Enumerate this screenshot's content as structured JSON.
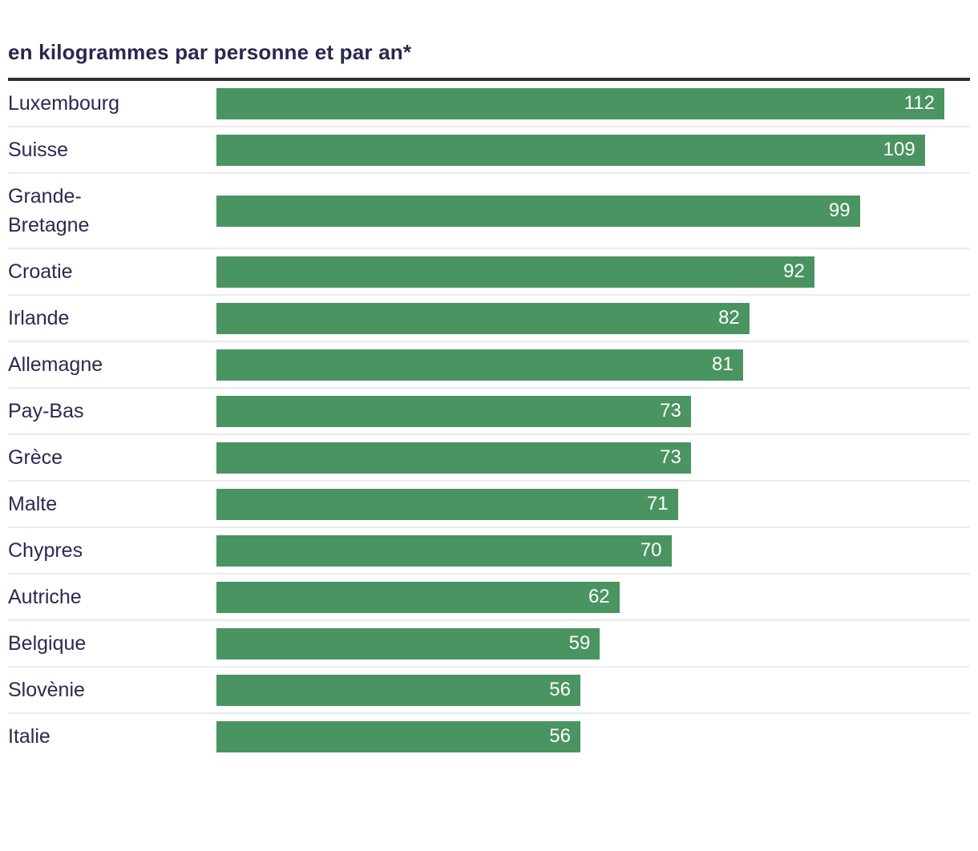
{
  "chart_data": {
    "type": "bar",
    "orientation": "horizontal",
    "title": "en kilogrammes par personne et par an*",
    "categories": [
      "Luxembourg",
      "Suisse",
      "Grande-\nBretagne",
      "Croatie",
      "Irlande",
      "Allemagne",
      "Pay-Bas",
      "Grèce",
      "Malte",
      "Chypres",
      "Autriche",
      "Belgique",
      "Slovènie",
      "Italie"
    ],
    "values": [
      112,
      109,
      99,
      92,
      82,
      81,
      73,
      73,
      71,
      70,
      62,
      59,
      56,
      56
    ],
    "xlim": [
      0,
      112
    ],
    "value_label_position": "inside-end",
    "grid": false,
    "legend": false,
    "colors": {
      "bar": "#4a9461",
      "label_text": "#2a2a52",
      "title_text": "#28284f",
      "value_text": "#ffffff",
      "top_rule": "#2e2e2e",
      "row_separator": "#ebebeb",
      "background": "#ffffff"
    }
  }
}
